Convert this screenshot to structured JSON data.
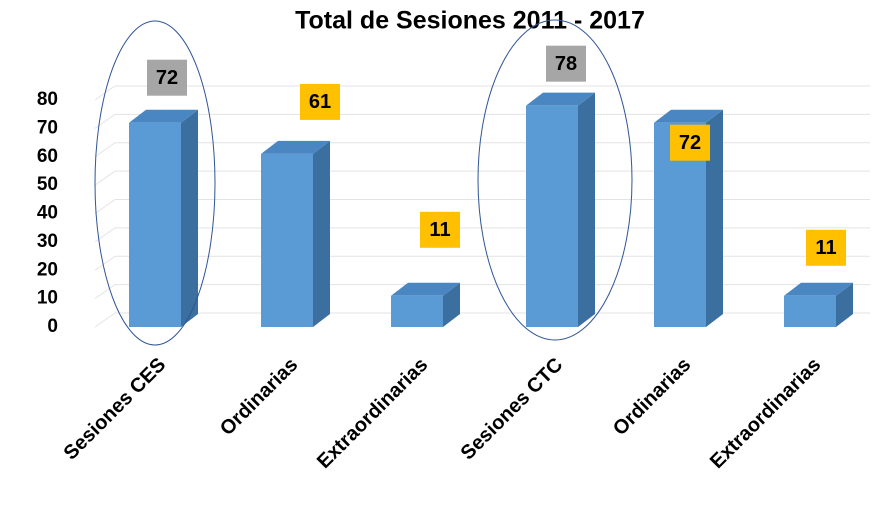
{
  "chart_data": {
    "type": "bar3d",
    "title": "Total de Sesiones 2011 - 2017",
    "categories": [
      "Sesiones CES",
      "Ordinarias",
      "Extraordinarias",
      "Sesiones CTC",
      "Ordinarias",
      "Extraordinarias"
    ],
    "values": [
      72,
      61,
      11,
      78,
      72,
      11
    ],
    "color": "#5b9bd5",
    "label_colors": [
      "#a6a6a6",
      "#ffc000",
      "#ffc000",
      "#a6a6a6",
      "#ffc000",
      "#ffc000"
    ],
    "ylim": [
      0,
      80
    ],
    "yticks": [
      0,
      10,
      20,
      30,
      40,
      50,
      60,
      70,
      80
    ],
    "grid": true
  }
}
